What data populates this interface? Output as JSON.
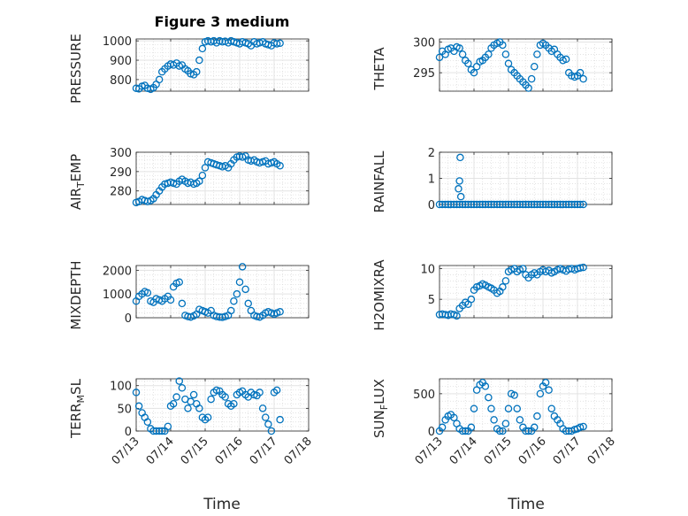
{
  "figure": {
    "title": "Figure 3 medium",
    "xlabel": "Time",
    "marker_color": "#0072BD"
  },
  "chart_data": [
    {
      "type": "scatter",
      "ylabel": "PRESSURE",
      "ylim": [
        740,
        1010
      ],
      "yticks": [
        800,
        900,
        1000
      ],
      "xticks": [
        "07/13",
        "07/14",
        "07/15",
        "07/16",
        "07/17",
        "07/18"
      ],
      "xlim": [
        0,
        5
      ],
      "x": [
        0.0,
        0.08,
        0.17,
        0.25,
        0.33,
        0.42,
        0.5,
        0.58,
        0.67,
        0.75,
        0.83,
        0.92,
        1.0,
        1.08,
        1.17,
        1.25,
        1.33,
        1.42,
        1.5,
        1.58,
        1.67,
        1.75,
        1.83,
        1.92,
        2.0,
        2.08,
        2.17,
        2.25,
        2.33,
        2.42,
        2.5,
        2.58,
        2.67,
        2.75,
        2.83,
        2.92,
        3.0,
        3.08,
        3.17,
        3.25,
        3.33,
        3.42,
        3.5,
        3.58,
        3.67,
        3.75,
        3.83,
        3.92,
        4.0,
        4.08,
        4.17
      ],
      "y": [
        755,
        752,
        765,
        770,
        755,
        750,
        758,
        775,
        800,
        840,
        855,
        870,
        880,
        875,
        885,
        870,
        875,
        855,
        845,
        830,
        825,
        840,
        900,
        960,
        995,
        1000,
        995,
        1000,
        990,
        1000,
        995,
        998,
        990,
        1000,
        995,
        990,
        985,
        995,
        990,
        985,
        975,
        995,
        985,
        990,
        995,
        985,
        980,
        975,
        990,
        985,
        988
      ]
    },
    {
      "type": "scatter",
      "ylabel": "THETA",
      "ylim": [
        292,
        300.5
      ],
      "yticks": [
        295,
        300
      ],
      "xticks": [
        "07/13",
        "07/14",
        "07/15",
        "07/16",
        "07/17",
        "07/18"
      ],
      "xlim": [
        0,
        5
      ],
      "x": [
        0.0,
        0.08,
        0.17,
        0.25,
        0.33,
        0.42,
        0.5,
        0.58,
        0.67,
        0.75,
        0.83,
        0.92,
        1.0,
        1.08,
        1.17,
        1.25,
        1.33,
        1.42,
        1.5,
        1.58,
        1.67,
        1.75,
        1.83,
        1.92,
        2.0,
        2.08,
        2.17,
        2.25,
        2.33,
        2.42,
        2.5,
        2.58,
        2.67,
        2.75,
        2.83,
        2.92,
        3.0,
        3.08,
        3.17,
        3.25,
        3.33,
        3.42,
        3.5,
        3.58,
        3.67,
        3.75,
        3.83,
        3.92,
        4.0,
        4.08,
        4.17
      ],
      "y": [
        297.5,
        298.5,
        298.0,
        298.8,
        299.0,
        298.5,
        299.2,
        299.0,
        298.0,
        297.0,
        296.5,
        295.5,
        295.0,
        296.0,
        296.8,
        297.0,
        297.5,
        298.0,
        299.0,
        299.5,
        299.8,
        300.0,
        299.5,
        298.0,
        296.5,
        295.5,
        295.0,
        294.5,
        294.0,
        293.5,
        293.0,
        292.5,
        294.0,
        296.0,
        298.0,
        299.5,
        299.8,
        299.5,
        299.0,
        298.5,
        298.8,
        298.0,
        297.5,
        297.0,
        297.2,
        295.0,
        294.5,
        294.3,
        294.5,
        295.0,
        294.0
      ]
    },
    {
      "type": "scatter",
      "ylabel": "AIR_TEMP",
      "ylim": [
        273,
        300
      ],
      "yticks": [
        280,
        290,
        300
      ],
      "xticks": [
        "07/13",
        "07/14",
        "07/15",
        "07/16",
        "07/17",
        "07/18"
      ],
      "xlim": [
        0,
        5
      ],
      "x": [
        0.0,
        0.08,
        0.17,
        0.25,
        0.33,
        0.42,
        0.5,
        0.58,
        0.67,
        0.75,
        0.83,
        0.92,
        1.0,
        1.08,
        1.17,
        1.25,
        1.33,
        1.42,
        1.5,
        1.58,
        1.67,
        1.75,
        1.83,
        1.92,
        2.0,
        2.08,
        2.17,
        2.25,
        2.33,
        2.42,
        2.5,
        2.58,
        2.67,
        2.75,
        2.83,
        2.92,
        3.0,
        3.08,
        3.17,
        3.25,
        3.33,
        3.42,
        3.5,
        3.58,
        3.67,
        3.75,
        3.83,
        3.92,
        4.0,
        4.08,
        4.17
      ],
      "y": [
        274.0,
        274.5,
        275.5,
        275.0,
        274.5,
        275.0,
        276.0,
        278.0,
        280.0,
        282.0,
        283.5,
        284.0,
        284.5,
        284.0,
        283.5,
        285.0,
        286.0,
        285.0,
        284.0,
        284.5,
        283.5,
        284.0,
        285.0,
        288.0,
        292.0,
        295.0,
        294.5,
        294.0,
        293.5,
        293.0,
        292.5,
        293.0,
        292.0,
        294.0,
        296.0,
        297.5,
        298.0,
        297.5,
        298.0,
        296.0,
        295.5,
        296.0,
        295.0,
        294.5,
        295.0,
        295.5,
        294.0,
        294.5,
        295.0,
        294.0,
        293.0
      ]
    },
    {
      "type": "scatter",
      "ylabel": "RAINFALL",
      "ylim": [
        0,
        2
      ],
      "yticks": [
        0,
        1,
        2
      ],
      "xticks": [
        "07/13",
        "07/14",
        "07/15",
        "07/16",
        "07/17",
        "07/18"
      ],
      "xlim": [
        0,
        5
      ],
      "x": [
        0.0,
        0.08,
        0.17,
        0.25,
        0.33,
        0.42,
        0.5,
        0.58,
        0.67,
        0.75,
        0.83,
        0.92,
        1.0,
        1.08,
        1.17,
        1.25,
        1.33,
        1.42,
        1.5,
        1.58,
        1.67,
        1.75,
        1.83,
        1.92,
        2.0,
        2.08,
        2.17,
        2.25,
        2.33,
        2.42,
        2.5,
        2.58,
        2.67,
        2.75,
        2.83,
        2.92,
        3.0,
        3.08,
        3.17,
        3.25,
        3.33,
        3.42,
        3.5,
        3.58,
        3.67,
        3.75,
        3.83,
        3.92,
        4.0,
        4.08,
        4.17,
        0.55,
        0.58,
        0.6,
        0.62
      ],
      "y": [
        0,
        0,
        0,
        0,
        0,
        0,
        0,
        0,
        0,
        0,
        0,
        0,
        0,
        0,
        0,
        0,
        0,
        0,
        0,
        0,
        0,
        0,
        0,
        0,
        0,
        0,
        0,
        0,
        0,
        0,
        0,
        0,
        0,
        0,
        0,
        0,
        0,
        0,
        0,
        0,
        0,
        0,
        0,
        0,
        0,
        0,
        0,
        0,
        0,
        0,
        0,
        0.6,
        0.9,
        1.8,
        0.3
      ]
    },
    {
      "type": "scatter",
      "ylabel": "MIXDEPTH",
      "ylim": [
        0,
        2200
      ],
      "yticks": [
        0,
        1000,
        2000
      ],
      "xticks": [
        "07/13",
        "07/14",
        "07/15",
        "07/16",
        "07/17",
        "07/18"
      ],
      "xlim": [
        0,
        5
      ],
      "x": [
        0.0,
        0.08,
        0.17,
        0.25,
        0.33,
        0.42,
        0.5,
        0.58,
        0.67,
        0.75,
        0.83,
        0.92,
        1.0,
        1.08,
        1.17,
        1.25,
        1.33,
        1.42,
        1.5,
        1.58,
        1.67,
        1.75,
        1.83,
        1.92,
        2.0,
        2.08,
        2.17,
        2.25,
        2.33,
        2.42,
        2.5,
        2.58,
        2.67,
        2.75,
        2.83,
        2.92,
        3.0,
        3.08,
        3.17,
        3.25,
        3.33,
        3.42,
        3.5,
        3.58,
        3.67,
        3.75,
        3.83,
        3.92,
        4.0,
        4.08,
        4.17
      ],
      "y": [
        700,
        900,
        1000,
        1100,
        1050,
        700,
        650,
        800,
        750,
        700,
        800,
        900,
        750,
        1300,
        1450,
        1500,
        600,
        100,
        50,
        30,
        80,
        150,
        350,
        300,
        250,
        200,
        300,
        100,
        50,
        30,
        20,
        50,
        100,
        300,
        700,
        1000,
        1500,
        2150,
        1200,
        600,
        300,
        100,
        50,
        30,
        100,
        200,
        250,
        200,
        150,
        200,
        250
      ]
    },
    {
      "type": "scatter",
      "ylabel": "H2OMIXRA",
      "ylim": [
        2,
        10.5
      ],
      "yticks": [
        5,
        10
      ],
      "xticks": [
        "07/13",
        "07/14",
        "07/15",
        "07/16",
        "07/17",
        "07/18"
      ],
      "xlim": [
        0,
        5
      ],
      "x": [
        0.0,
        0.08,
        0.17,
        0.25,
        0.33,
        0.42,
        0.5,
        0.58,
        0.67,
        0.75,
        0.83,
        0.92,
        1.0,
        1.08,
        1.17,
        1.25,
        1.33,
        1.42,
        1.5,
        1.58,
        1.67,
        1.75,
        1.83,
        1.92,
        2.0,
        2.08,
        2.17,
        2.25,
        2.33,
        2.42,
        2.5,
        2.58,
        2.67,
        2.75,
        2.83,
        2.92,
        3.0,
        3.08,
        3.17,
        3.25,
        3.33,
        3.42,
        3.5,
        3.58,
        3.67,
        3.75,
        3.83,
        3.92,
        4.0,
        4.08,
        4.17
      ],
      "y": [
        2.5,
        2.6,
        2.5,
        2.4,
        2.6,
        2.5,
        2.3,
        3.5,
        4.0,
        4.5,
        4.2,
        5.0,
        6.5,
        7.0,
        7.2,
        7.5,
        7.3,
        7.0,
        6.8,
        6.5,
        6.0,
        6.3,
        7.0,
        8.0,
        9.5,
        9.8,
        10.0,
        9.5,
        9.8,
        10.0,
        9.0,
        8.5,
        9.0,
        9.3,
        9.0,
        9.5,
        9.8,
        9.5,
        9.7,
        9.3,
        9.5,
        9.8,
        10.0,
        9.8,
        9.6,
        9.9,
        10.0,
        9.8,
        10.0,
        10.1,
        10.2
      ]
    },
    {
      "type": "scatter",
      "ylabel": "TERR_MSL",
      "ylim": [
        0,
        115
      ],
      "yticks": [
        0,
        50,
        100
      ],
      "xticks": [
        "07/13",
        "07/14",
        "07/15",
        "07/16",
        "07/17",
        "07/18"
      ],
      "xlim": [
        0,
        5
      ],
      "x": [
        0.0,
        0.08,
        0.17,
        0.25,
        0.33,
        0.42,
        0.5,
        0.58,
        0.67,
        0.75,
        0.83,
        0.92,
        1.0,
        1.08,
        1.17,
        1.25,
        1.33,
        1.42,
        1.5,
        1.58,
        1.67,
        1.75,
        1.83,
        1.92,
        2.0,
        2.08,
        2.17,
        2.25,
        2.33,
        2.42,
        2.5,
        2.58,
        2.67,
        2.75,
        2.83,
        2.92,
        3.0,
        3.08,
        3.17,
        3.25,
        3.33,
        3.42,
        3.5,
        3.58,
        3.67,
        3.75,
        3.83,
        3.92,
        4.0,
        4.08,
        4.17
      ],
      "y": [
        85,
        55,
        40,
        30,
        20,
        5,
        0,
        0,
        0,
        0,
        0,
        10,
        55,
        60,
        75,
        110,
        95,
        70,
        50,
        65,
        80,
        60,
        50,
        30,
        25,
        30,
        70,
        85,
        90,
        88,
        80,
        75,
        60,
        55,
        60,
        80,
        85,
        88,
        80,
        75,
        85,
        80,
        78,
        85,
        50,
        30,
        15,
        0,
        85,
        90,
        25
      ]
    },
    {
      "type": "scatter",
      "ylabel": "SUN_FLUX",
      "ylim": [
        0,
        700
      ],
      "yticks": [
        0,
        500
      ],
      "xticks": [
        "07/13",
        "07/14",
        "07/15",
        "07/16",
        "07/17",
        "07/18"
      ],
      "xlim": [
        0,
        5
      ],
      "x": [
        0.0,
        0.08,
        0.17,
        0.25,
        0.33,
        0.42,
        0.5,
        0.58,
        0.67,
        0.75,
        0.83,
        0.92,
        1.0,
        1.08,
        1.17,
        1.25,
        1.33,
        1.42,
        1.5,
        1.58,
        1.67,
        1.75,
        1.83,
        1.92,
        2.0,
        2.08,
        2.17,
        2.25,
        2.33,
        2.42,
        2.5,
        2.58,
        2.67,
        2.75,
        2.83,
        2.92,
        3.0,
        3.08,
        3.17,
        3.25,
        3.33,
        3.42,
        3.5,
        3.58,
        3.67,
        3.75,
        3.83,
        3.92,
        4.0,
        4.08,
        4.17
      ],
      "y": [
        0,
        50,
        150,
        200,
        220,
        180,
        100,
        30,
        0,
        0,
        0,
        50,
        300,
        550,
        620,
        650,
        600,
        450,
        300,
        150,
        30,
        0,
        0,
        100,
        300,
        500,
        480,
        300,
        150,
        50,
        0,
        0,
        0,
        50,
        200,
        500,
        600,
        650,
        550,
        300,
        200,
        150,
        100,
        30,
        0,
        0,
        0,
        20,
        30,
        50,
        60
      ]
    }
  ]
}
